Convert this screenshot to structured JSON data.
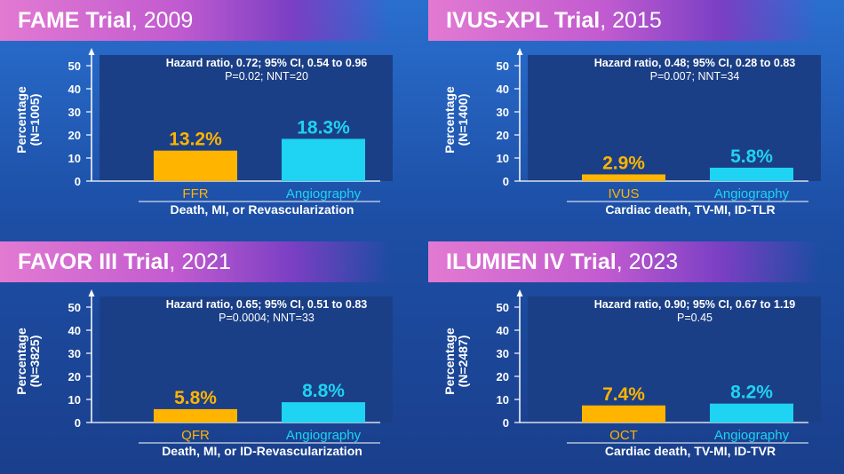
{
  "chart_data": [
    {
      "type": "bar",
      "trial": "FAME Trial",
      "year": ", 2009",
      "ylabel": "Percentage",
      "n": "(N=1005)",
      "ylim": [
        0,
        50
      ],
      "yticks": [
        "0",
        "10",
        "20",
        "30",
        "40",
        "50"
      ],
      "categories": [
        "FFR",
        "Angiography"
      ],
      "values": [
        13.2,
        18.3
      ],
      "value_labels": [
        "13.2%",
        "18.3%"
      ],
      "colors": [
        "#ffb400",
        "#1fd3f2"
      ],
      "stat_line1": "Hazard ratio, 0.72; 95% CI, 0.54 to 0.96",
      "stat_line2": "P=0.02; NNT=20",
      "endpoint": "Death, MI, or Revascularization"
    },
    {
      "type": "bar",
      "trial": "IVUS-XPL Trial",
      "year": ", 2015",
      "ylabel": "Percentage",
      "n": "(N=1400)",
      "ylim": [
        0,
        50
      ],
      "yticks": [
        "0",
        "10",
        "20",
        "30",
        "40",
        "50"
      ],
      "categories": [
        "IVUS",
        "Angiography"
      ],
      "values": [
        2.9,
        5.8
      ],
      "value_labels": [
        "2.9%",
        "5.8%"
      ],
      "colors": [
        "#ffb400",
        "#1fd3f2"
      ],
      "stat_line1": "Hazard ratio, 0.48; 95% CI, 0.28 to 0.83",
      "stat_line2": "P=0.007; NNT=34",
      "endpoint": "Cardiac death, TV-MI, ID-TLR"
    },
    {
      "type": "bar",
      "trial": "FAVOR III Trial",
      "year": ", 2021",
      "ylabel": "Percentage",
      "n": "(N=3825)",
      "ylim": [
        0,
        50
      ],
      "yticks": [
        "0",
        "10",
        "20",
        "30",
        "40",
        "50"
      ],
      "categories": [
        "QFR",
        "Angiography"
      ],
      "values": [
        5.8,
        8.8
      ],
      "value_labels": [
        "5.8%",
        "8.8%"
      ],
      "colors": [
        "#ffb400",
        "#1fd3f2"
      ],
      "stat_line1": "Hazard ratio, 0.65; 95% CI, 0.51 to 0.83",
      "stat_line2": "P=0.0004; NNT=33",
      "endpoint": "Death, MI, or ID-Revascularization"
    },
    {
      "type": "bar",
      "trial": "ILUMIEN IV Trial",
      "year": ", 2023",
      "ylabel": "Percentage",
      "n": "(N=2487)",
      "ylim": [
        0,
        50
      ],
      "yticks": [
        "0",
        "10",
        "20",
        "30",
        "40",
        "50"
      ],
      "categories": [
        "OCT",
        "Angiography"
      ],
      "values": [
        7.4,
        8.2
      ],
      "value_labels": [
        "7.4%",
        "8.2%"
      ],
      "colors": [
        "#ffb400",
        "#1fd3f2"
      ],
      "stat_line1": "Hazard ratio, 0.90; 95% CI, 0.67 to 1.19",
      "stat_line2": "P=0.45",
      "endpoint": "Cardiac death, TV-MI, ID-TVR"
    }
  ]
}
